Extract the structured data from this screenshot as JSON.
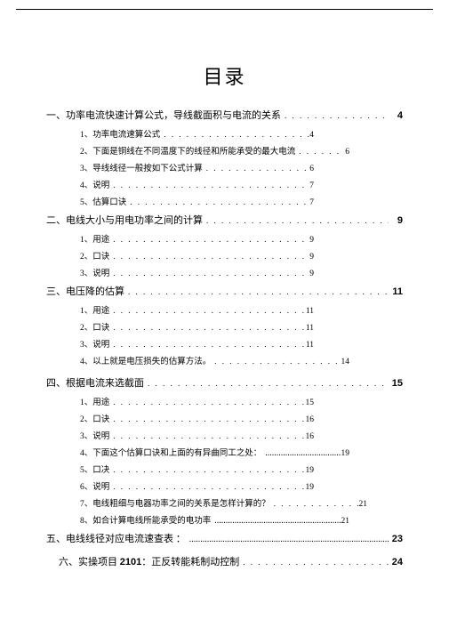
{
  "title": "目录",
  "sections": [
    {
      "label": "一、功率电流快速计算公式，导线截面积与电流的关系",
      "page": "4",
      "subs": [
        {
          "label": "1、功率电流速算公式",
          "page": "4",
          "cls": "pg-sub"
        },
        {
          "label": "2、下面是铜线在不同温度下的线径和所能承受的最大电流",
          "page": "6",
          "cls": "pg-sub2"
        },
        {
          "label": "3、导线线径一般按如下公式计算",
          "page": "6",
          "cls": "pg-sub"
        },
        {
          "label": "4、说明",
          "page": "7",
          "cls": "pg-sub"
        },
        {
          "label": "5、估算口诀",
          "page": "7",
          "cls": "pg-sub"
        }
      ]
    },
    {
      "label": "二、电线大小与用电功率之间的计算",
      "page": "9",
      "subs": [
        {
          "label": "1、用途",
          "page": "9",
          "cls": "pg-sub"
        },
        {
          "label": "2、口诀",
          "page": "9",
          "cls": "pg-sub"
        },
        {
          "label": "3、说明",
          "page": "9",
          "cls": "pg-sub"
        }
      ]
    },
    {
      "label": "三、电压降的估算",
      "page": "11",
      "subs": [
        {
          "label": "1、用途",
          "page": "11",
          "cls": "pg-sub"
        },
        {
          "label": "2、口诀",
          "page": "11",
          "cls": "pg-sub"
        },
        {
          "label": "3、说明",
          "page": "11",
          "cls": "pg-sub"
        },
        {
          "label": "4、以上就是电压损失的估算方法。",
          "page": "14",
          "cls": "pg-sub2"
        }
      ]
    },
    {
      "label": "四、根据电流来选截面",
      "page": "15",
      "pre_gap": "10px",
      "subs": [
        {
          "label": "1、用途",
          "page": "15",
          "cls": "pg-sub"
        },
        {
          "label": "2、口诀",
          "page": "16",
          "cls": "pg-sub"
        },
        {
          "label": "3、说明",
          "page": "16",
          "cls": "pg-sub"
        },
        {
          "label": "4、下面这个估算口诀和上面的有异曲同工之处：",
          "page": "19",
          "cls": "pg-sub2",
          "dense": true
        },
        {
          "label": "5、口决",
          "page": "19",
          "cls": "pg-sub"
        },
        {
          "label": "6、说明",
          "page": "19",
          "cls": "pg-sub"
        },
        {
          "label": "7、电线粗细与电器功率之间的关系是怎样计算的？",
          "page": "21",
          "cls": "pg-sub3"
        },
        {
          "label": "8、如合计算电线所能承受的电功率",
          "page": "21",
          "cls": "pg-sub2",
          "dense": true
        }
      ]
    },
    {
      "label": "五、电线线径对应电流速查表 ：",
      "page": "23",
      "dense": true,
      "subs": []
    }
  ],
  "special": {
    "prefix": "六、实操项目 ",
    "num": "2101",
    "suffix": "：正反转能耗制动控制",
    "page": "24"
  }
}
